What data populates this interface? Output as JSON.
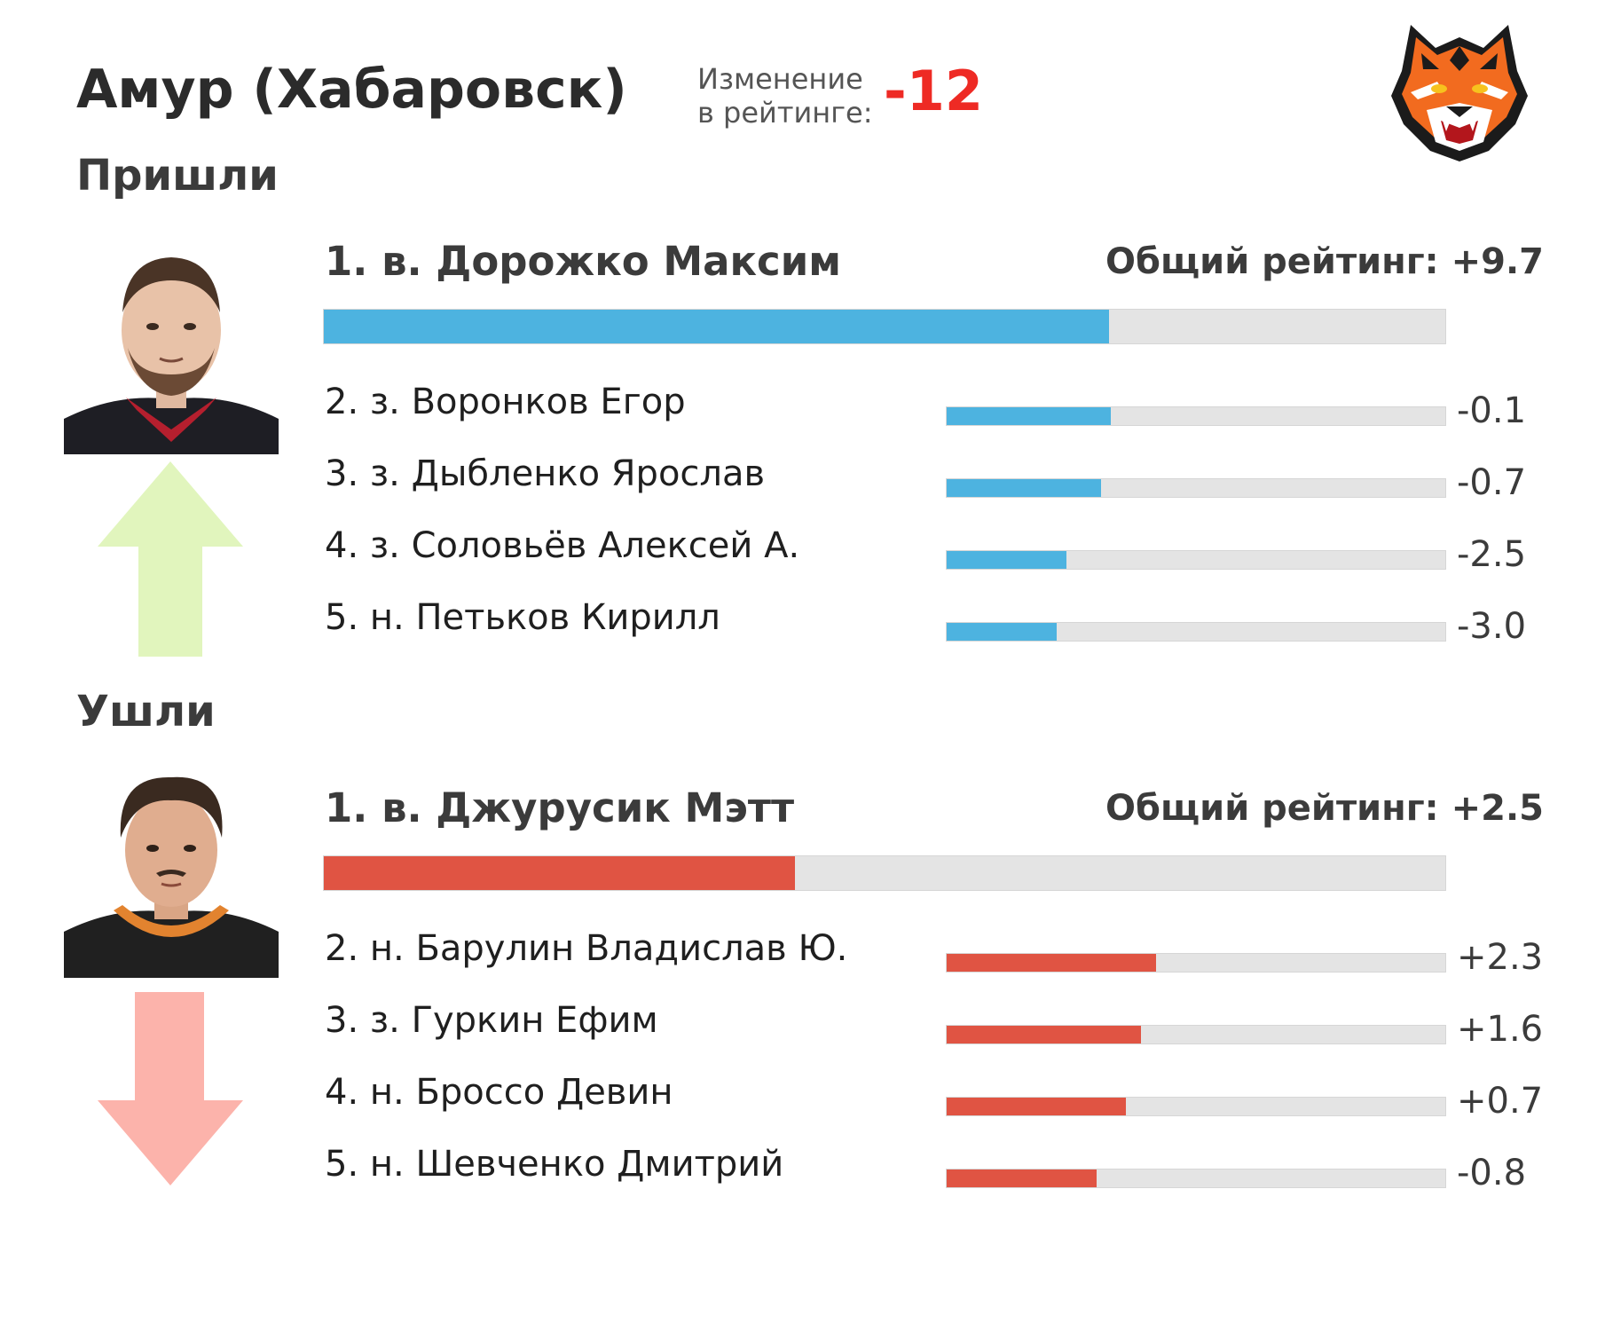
{
  "header": {
    "team": "Амур (Хабаровск)",
    "change_label": [
      "Изменение",
      "в рейтинге:"
    ],
    "change_value": "-12",
    "change_color": "#ee2a24"
  },
  "logo": {
    "icon": "tiger-head-logo"
  },
  "chart_data": [
    {
      "type": "bar",
      "section": "Пришли",
      "accent": "#4db3e0",
      "arrow": "up-arrow-icon",
      "lead": {
        "label": "1. в. Дорожко Максим",
        "total_label": "Общий рейтинг:",
        "total": "+9.7",
        "value": 9.7,
        "fill_fraction": 0.7
      },
      "rows": [
        {
          "label": "2. з. Воронков Егор",
          "value": -0.1,
          "display": "-0.1",
          "fill_fraction": 0.33
        },
        {
          "label": "3. з. Дыбленко Ярослав",
          "value": -0.7,
          "display": "-0.7",
          "fill_fraction": 0.31
        },
        {
          "label": "4. з. Соловьёв Алексей А.",
          "value": -2.5,
          "display": "-2.5",
          "fill_fraction": 0.24
        },
        {
          "label": "5. н. Петьков Кирилл",
          "value": -3.0,
          "display": "-3.0",
          "fill_fraction": 0.22
        }
      ]
    },
    {
      "type": "bar",
      "section": "Ушли",
      "accent": "#e05443",
      "arrow": "down-arrow-icon",
      "lead": {
        "label": "1. в. Джурусик Мэтт",
        "total_label": "Общий рейтинг:",
        "total": "+2.5",
        "value": 2.5,
        "fill_fraction": 0.42
      },
      "rows": [
        {
          "label": "2. н. Барулин Владислав Ю.",
          "value": 2.3,
          "display": "+2.3",
          "fill_fraction": 0.42
        },
        {
          "label": "3. з. Гуркин Ефим",
          "value": 1.6,
          "display": "+1.6",
          "fill_fraction": 0.39
        },
        {
          "label": "4. н. Броссо Девин",
          "value": 0.7,
          "display": "+0.7",
          "fill_fraction": 0.36
        },
        {
          "label": "5. н. Шевченко Дмитрий",
          "value": -0.8,
          "display": "-0.8",
          "fill_fraction": 0.3
        }
      ]
    }
  ]
}
